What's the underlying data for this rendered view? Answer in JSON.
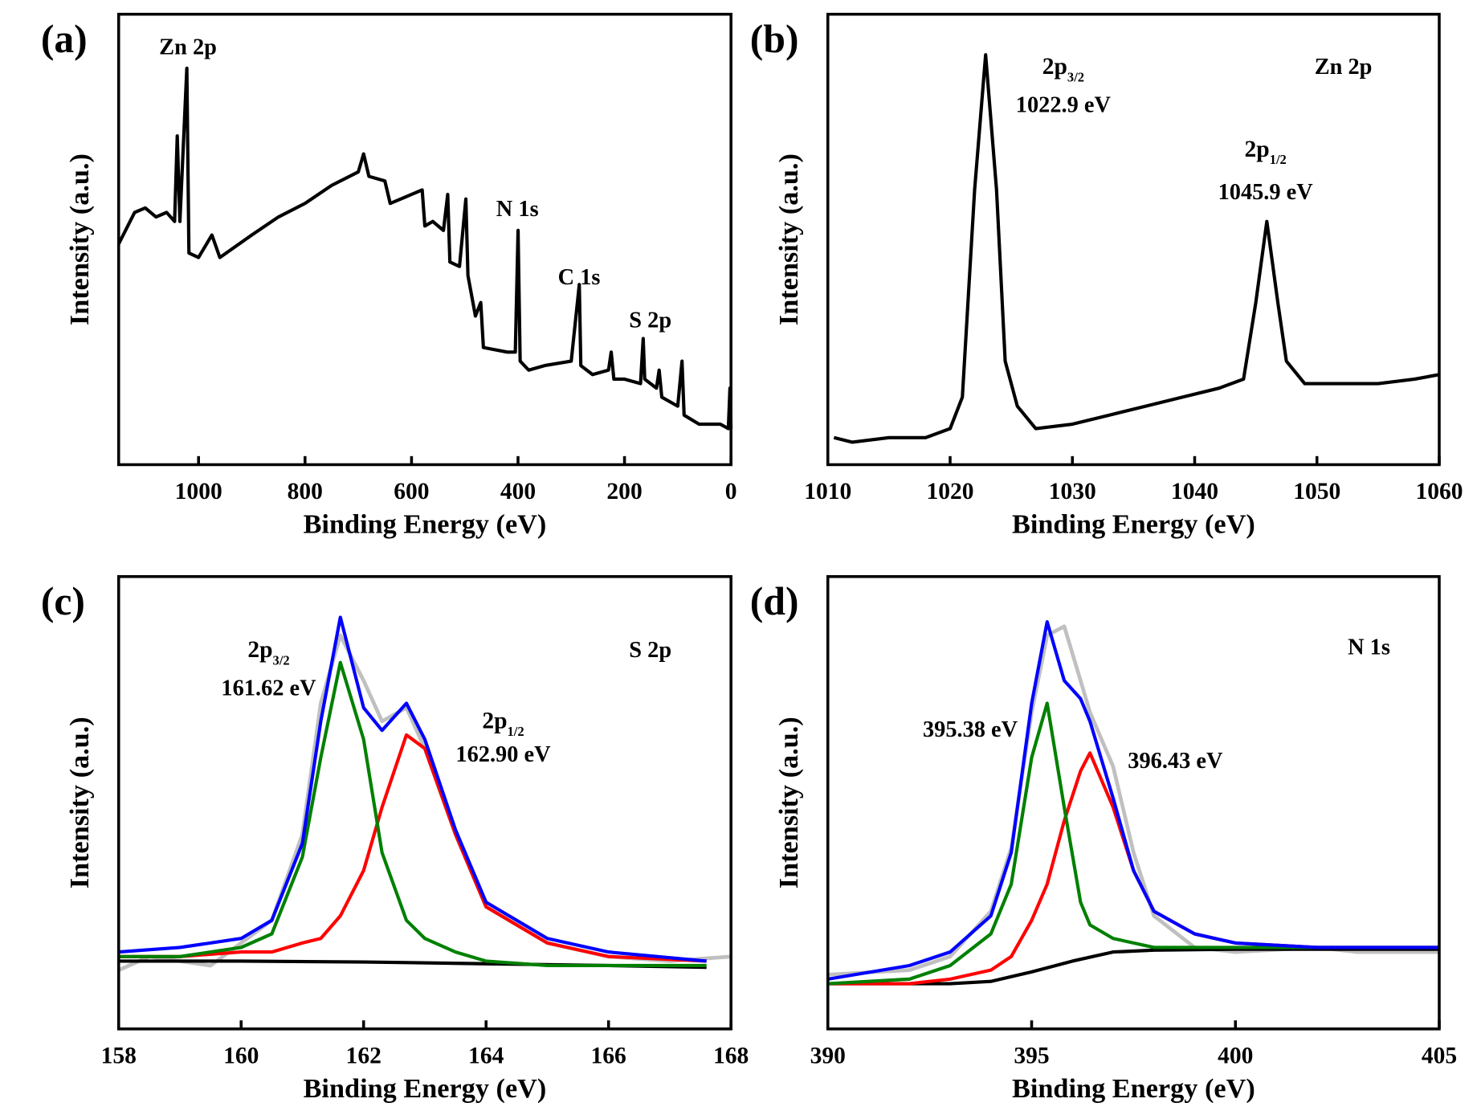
{
  "chart_data": [
    {
      "type": "line",
      "panel_label": "(a)",
      "xlabel": "Binding Energy (eV)",
      "ylabel": "Intensity (a.u.)",
      "xlim": [
        1150,
        0
      ],
      "ylim": [
        0,
        100
      ],
      "xticks": [
        1000,
        800,
        600,
        400,
        200,
        0
      ],
      "series": [
        {
          "color": "#000000",
          "x": [
            1150,
            1120,
            1100,
            1080,
            1060,
            1045,
            1040,
            1035,
            1022,
            1018,
            1000,
            975,
            960,
            900,
            850,
            800,
            750,
            700,
            690,
            680,
            650,
            640,
            600,
            580,
            575,
            560,
            540,
            532,
            528,
            510,
            498,
            494,
            480,
            470,
            465,
            420,
            405,
            400,
            396,
            380,
            350,
            300,
            285,
            282,
            260,
            230,
            225,
            220,
            200,
            170,
            165,
            162,
            140,
            135,
            130,
            100,
            92,
            88,
            60,
            20,
            5,
            2,
            0
          ],
          "values": [
            49,
            56,
            57,
            55,
            56,
            54,
            73,
            54,
            88,
            47,
            46,
            51,
            46,
            51,
            55,
            58,
            62,
            65,
            69,
            64,
            63,
            58,
            60,
            61,
            53,
            54,
            52,
            60,
            45,
            44,
            59,
            42,
            33,
            36,
            26,
            25,
            25,
            52,
            23,
            21,
            22,
            23,
            40,
            22,
            20,
            21,
            25,
            19,
            19,
            18,
            28,
            19,
            17,
            21,
            15,
            13,
            23,
            11,
            9,
            9,
            8,
            17,
            8
          ]
        }
      ],
      "annotations": [
        {
          "text": "Zn 2p"
        },
        {
          "text": "N 1s"
        },
        {
          "text": "C 1s"
        },
        {
          "text": "S 2p"
        }
      ]
    },
    {
      "type": "line",
      "panel_label": "(b)",
      "xlabel": "Binding Energy (eV)",
      "ylabel": "Intensity (a.u.)",
      "xlim": [
        1010,
        1060
      ],
      "ylim": [
        0,
        100
      ],
      "xticks": [
        1010,
        1020,
        1030,
        1040,
        1050,
        1060
      ],
      "series": [
        {
          "color": "#000000",
          "x": [
            1010.5,
            1012,
            1015,
            1018,
            1020,
            1021,
            1022,
            1022.9,
            1023.8,
            1024.5,
            1025.5,
            1027,
            1030,
            1033,
            1036,
            1039,
            1042,
            1044,
            1045,
            1045.9,
            1046.8,
            1047.5,
            1049,
            1052,
            1055,
            1058,
            1060
          ],
          "values": [
            6,
            5,
            6,
            6,
            8,
            15,
            61,
            91,
            61,
            23,
            13,
            8,
            9,
            11,
            13,
            15,
            17,
            19,
            36,
            54,
            36,
            23,
            18,
            18,
            18,
            19,
            20
          ]
        }
      ],
      "annotations": [
        {
          "text": "2p",
          "sub": "3/2"
        },
        {
          "text": "1022.9 eV"
        },
        {
          "text": "Zn 2p"
        },
        {
          "text": "2p",
          "sub": "1/2"
        },
        {
          "text": "1045.9 eV"
        }
      ]
    },
    {
      "type": "line",
      "panel_label": "(c)",
      "xlabel": "Binding Energy (eV)",
      "ylabel": "Intensity (a.u.)",
      "xlim": [
        158,
        168
      ],
      "ylim": [
        0,
        100
      ],
      "xticks": [
        158,
        160,
        162,
        164,
        166,
        168
      ],
      "series": [
        {
          "color": "#c0c0c0",
          "x": [
            158,
            158.5,
            159,
            159.5,
            160,
            160.5,
            161,
            161.3,
            161.62,
            162,
            162.3,
            162.7,
            163,
            163.5,
            164,
            165,
            166,
            167,
            168
          ],
          "values": [
            13,
            16,
            15,
            14,
            19,
            24,
            43,
            72,
            87,
            77,
            68,
            71,
            62,
            43,
            27,
            19,
            16,
            15,
            16
          ]
        },
        {
          "color": "#000000",
          "x": [
            158,
            160,
            162,
            164,
            166,
            167.6
          ],
          "values": [
            15,
            15,
            14.8,
            14.4,
            14,
            13.6
          ]
        },
        {
          "color": "#ff0000",
          "x": [
            158,
            159,
            160,
            160.5,
            161,
            161.3,
            161.62,
            162,
            162.3,
            162.7,
            163,
            163.5,
            164,
            165,
            166,
            167.6
          ],
          "values": [
            16,
            16,
            17,
            17,
            19,
            20,
            25,
            35,
            49,
            65,
            62,
            43,
            27,
            19,
            16,
            15
          ]
        },
        {
          "color": "#008000",
          "x": [
            158,
            159,
            160,
            160.5,
            161,
            161.3,
            161.62,
            162,
            162.3,
            162.7,
            163,
            163.5,
            164,
            165,
            166,
            167.6
          ],
          "values": [
            16,
            16,
            18,
            21,
            38,
            60,
            81,
            64,
            39,
            24,
            20,
            17,
            15,
            14,
            14,
            14
          ]
        },
        {
          "color": "#0000ff",
          "x": [
            158,
            159,
            160,
            160.5,
            161,
            161.3,
            161.62,
            162,
            162.3,
            162.7,
            163,
            163.5,
            164,
            165,
            166,
            167.6
          ],
          "values": [
            17,
            18,
            20,
            24,
            41,
            68,
            91,
            71,
            66,
            72,
            64,
            44,
            28,
            20,
            17,
            15
          ]
        }
      ],
      "annotations": [
        {
          "text": "2p",
          "sub": "3/2"
        },
        {
          "text": "161.62 eV"
        },
        {
          "text": "S 2p"
        },
        {
          "text": "2p",
          "sub": "1/2"
        },
        {
          "text": "162.90 eV"
        }
      ]
    },
    {
      "type": "line",
      "panel_label": "(d)",
      "xlabel": "Binding Energy (eV)",
      "ylabel": "Intensity (a.u.)",
      "xlim": [
        390,
        405
      ],
      "ylim": [
        0,
        100
      ],
      "xticks": [
        390,
        395,
        400,
        405
      ],
      "series": [
        {
          "color": "#c0c0c0",
          "x": [
            390,
            392,
            393,
            394,
            394.5,
            395,
            395.38,
            395.8,
            396.2,
            396.43,
            397,
            397.5,
            398,
            399,
            400,
            402,
            403,
            405
          ],
          "values": [
            12,
            13,
            16,
            26,
            40,
            70,
            87,
            89,
            77,
            70,
            58,
            39,
            25,
            18,
            17,
            18,
            17,
            17
          ]
        },
        {
          "color": "#000000",
          "x": [
            390,
            393,
            394,
            395,
            396,
            397,
            398,
            400,
            405
          ],
          "values": [
            10,
            10,
            10.5,
            12.6,
            15,
            17,
            17.4,
            17.6,
            17.6
          ]
        },
        {
          "color": "#ff0000",
          "x": [
            390,
            392,
            393,
            394,
            394.5,
            395,
            395.38,
            395.8,
            396.2,
            396.43,
            397,
            397.5,
            398,
            399,
            400,
            402,
            405
          ],
          "values": [
            10,
            10,
            11,
            13,
            16,
            24,
            32,
            46,
            57,
            61,
            49,
            35,
            26,
            21,
            19,
            18,
            18
          ]
        },
        {
          "color": "#008000",
          "x": [
            390,
            392,
            393,
            394,
            394.5,
            395,
            395.38,
            395.8,
            396.2,
            396.43,
            397,
            397.5,
            398,
            399,
            400,
            402,
            405
          ],
          "values": [
            10,
            11,
            14,
            21,
            32,
            60,
            72,
            49,
            28,
            23,
            20,
            19,
            18,
            18,
            18,
            18,
            18
          ]
        },
        {
          "color": "#0000ff",
          "x": [
            390,
            392,
            393,
            394,
            394.5,
            395,
            395.38,
            395.8,
            396.2,
            396.43,
            397,
            397.5,
            398,
            399,
            400,
            402,
            405
          ],
          "values": [
            11,
            14,
            17,
            25,
            39,
            72,
            90,
            77,
            73,
            68,
            51,
            35,
            26,
            21,
            19,
            18,
            18
          ]
        }
      ],
      "annotations": [
        {
          "text": "N 1s"
        },
        {
          "text": "395.38 eV"
        },
        {
          "text": "396.43 eV"
        }
      ]
    }
  ]
}
